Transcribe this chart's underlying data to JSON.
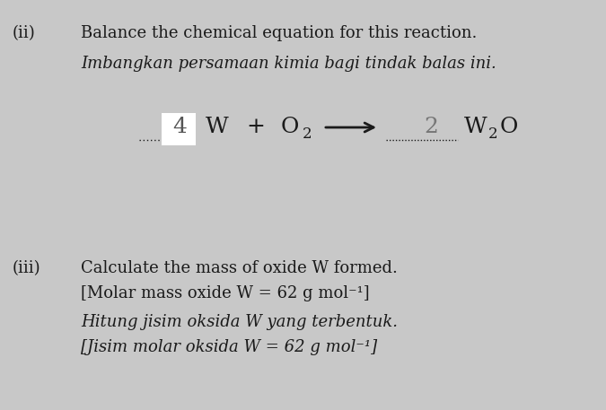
{
  "background_color": "#c8c8c8",
  "text_color": "#1a1a1a",
  "title_ii_label": "(ii)",
  "title_ii_en": "Balance the chemical equation for this reaction.",
  "title_ii_ms": "Imbangkan persamaan kimia bagi tindak balas ini.",
  "coeff_left": "4",
  "coeff_right": "2",
  "title_iii_label": "(iii)",
  "title_iii_en_line1": "Calculate the mass of oxide W formed.",
  "title_iii_en_line2": "[Molar mass oxide W = 62 g mol⁻¹]",
  "title_iii_ms_line1": "Hitung jisim oksida W yang terbentuk.",
  "title_iii_ms_line2": "[Jisim molar oksida W = 62 g mol⁻¹]",
  "fig_width": 6.75,
  "fig_height": 4.57,
  "dpi": 100
}
